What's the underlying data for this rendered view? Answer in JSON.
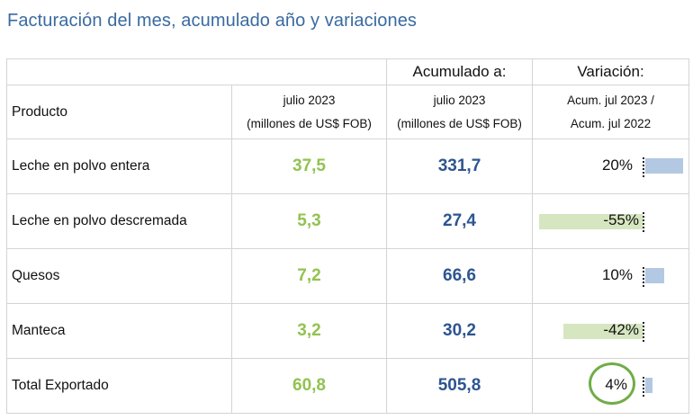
{
  "title": "Facturación del mes, acumulado año y variaciones",
  "header": {
    "product": "Producto",
    "month_line1": "julio 2023",
    "month_line2": "(millones de US$ FOB)",
    "accum_top": "Acumulado a:",
    "accum_line1": "julio 2023",
    "accum_line2": "(millones de US$ FOB)",
    "var_top": "Variación:",
    "var_line1": "Acum. jul 2023 /",
    "var_line2": "Acum. jul 2022"
  },
  "rows": [
    {
      "product": "Leche en polvo entera",
      "month": "37,5",
      "accum": "331,7",
      "variation": "20%",
      "variation_value": 20
    },
    {
      "product": "Leche en polvo descremada",
      "month": "5,3",
      "accum": "27,4",
      "variation": "-55%",
      "variation_value": -55
    },
    {
      "product": "Quesos",
      "month": "7,2",
      "accum": "66,6",
      "variation": "10%",
      "variation_value": 10
    },
    {
      "product": "Manteca",
      "month": "3,2",
      "accum": "30,2",
      "variation": "-42%",
      "variation_value": -42
    },
    {
      "product": "Total Exportado",
      "month": "60,8",
      "accum": "505,8",
      "variation": "4%",
      "variation_value": 4,
      "highlighted": true
    }
  ],
  "colors": {
    "month_values": "#92c250",
    "accum_values": "#2d5590",
    "positive_bar": "#b3c8e2",
    "negative_bar": "#d6e6c0",
    "highlight_circle": "#70ad47"
  }
}
